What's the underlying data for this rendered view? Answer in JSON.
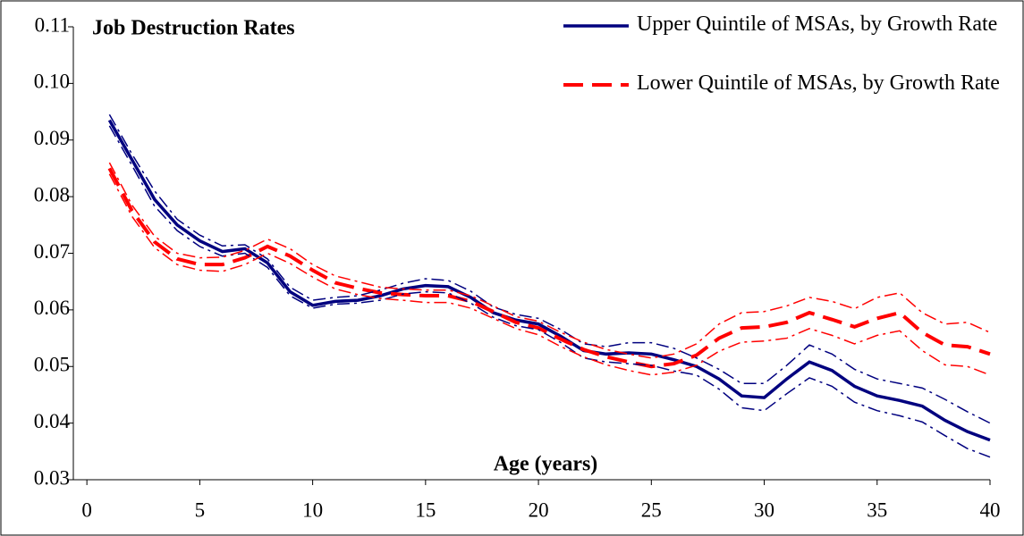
{
  "chart_data": {
    "type": "line",
    "title": "Job Destruction Rates",
    "x_label": "Age (years)",
    "x": [
      1,
      2,
      3,
      4,
      5,
      6,
      7,
      8,
      9,
      10,
      11,
      12,
      13,
      14,
      15,
      16,
      17,
      18,
      19,
      20,
      21,
      22,
      23,
      24,
      25,
      26,
      27,
      28,
      29,
      30,
      31,
      32,
      33,
      34,
      35,
      36,
      37,
      38,
      39,
      40
    ],
    "xlim": [
      -0.6,
      40
    ],
    "xticks": [
      0,
      5,
      10,
      15,
      20,
      25,
      30,
      35,
      40
    ],
    "ylim": [
      0.03,
      0.11
    ],
    "yticks": [
      0.03,
      0.04,
      0.05,
      0.06,
      0.07,
      0.08,
      0.09,
      {
        "value": 0.1,
        "label": "0.10"
      },
      0.11
    ],
    "legend": "top-right",
    "series": [
      {
        "name": "Upper Quintile of MSAs, by Growth Rate",
        "color": "#00007f",
        "style": "solid",
        "width": 3.5,
        "values": [
          0.0935,
          0.0865,
          0.0795,
          0.075,
          0.0722,
          0.0703,
          0.0708,
          0.0683,
          0.0632,
          0.0608,
          0.0615,
          0.0617,
          0.0625,
          0.0637,
          0.0643,
          0.0641,
          0.0622,
          0.0595,
          0.0582,
          0.0575,
          0.0553,
          0.0528,
          0.0522,
          0.0524,
          0.0522,
          0.0512,
          0.05,
          0.0478,
          0.0448,
          0.0445,
          0.0478,
          0.0508,
          0.0493,
          0.0465,
          0.0448,
          0.044,
          0.043,
          0.0405,
          0.0385,
          0.037
        ]
      },
      {
        "name": "Lower Quintile of MSAs, by Growth Rate",
        "color": "#ff0000",
        "style": "dashed",
        "width": 4,
        "values": [
          0.085,
          0.0775,
          0.072,
          0.069,
          0.068,
          0.068,
          0.0692,
          0.0712,
          0.0695,
          0.067,
          0.0648,
          0.0638,
          0.063,
          0.0627,
          0.0625,
          0.0625,
          0.0615,
          0.0597,
          0.0578,
          0.0568,
          0.0548,
          0.053,
          0.0517,
          0.0508,
          0.05,
          0.0505,
          0.052,
          0.055,
          0.0568,
          0.057,
          0.0578,
          0.0595,
          0.0583,
          0.057,
          0.0585,
          0.0595,
          0.056,
          0.0538,
          0.0535,
          0.0522
        ]
      },
      {
        "color": "#00007f",
        "style": "dashdot",
        "width": 1.5,
        "values": [
          0.0945,
          0.0875,
          0.081,
          0.076,
          0.0732,
          0.0713,
          0.0715,
          0.069,
          0.064,
          0.0617,
          0.0622,
          0.0625,
          0.0635,
          0.0647,
          0.0655,
          0.0652,
          0.0633,
          0.0605,
          0.0592,
          0.0585,
          0.0565,
          0.054,
          0.0535,
          0.0542,
          0.0542,
          0.0532,
          0.0515,
          0.0495,
          0.047,
          0.047,
          0.0502,
          0.0538,
          0.0522,
          0.0495,
          0.0478,
          0.047,
          0.0462,
          0.0442,
          0.042,
          0.04
        ]
      },
      {
        "color": "#00007f",
        "style": "dashdot",
        "width": 1.5,
        "values": [
          0.0925,
          0.0855,
          0.0783,
          0.074,
          0.0712,
          0.0695,
          0.07,
          0.0675,
          0.0625,
          0.0603,
          0.061,
          0.0612,
          0.0617,
          0.0628,
          0.0632,
          0.063,
          0.0612,
          0.0587,
          0.0572,
          0.0565,
          0.0542,
          0.0515,
          0.0508,
          0.0505,
          0.0502,
          0.0492,
          0.0485,
          0.046,
          0.0427,
          0.0422,
          0.0452,
          0.048,
          0.0465,
          0.0437,
          0.0422,
          0.0413,
          0.0402,
          0.0378,
          0.0355,
          0.034
        ]
      },
      {
        "color": "#ff0000",
        "style": "dashdot",
        "width": 1.5,
        "values": [
          0.086,
          0.0785,
          0.073,
          0.07,
          0.0692,
          0.0693,
          0.0705,
          0.0725,
          0.0708,
          0.068,
          0.066,
          0.065,
          0.064,
          0.0637,
          0.0635,
          0.0635,
          0.0625,
          0.0607,
          0.0588,
          0.058,
          0.056,
          0.0543,
          0.053,
          0.0522,
          0.0515,
          0.0522,
          0.054,
          0.0575,
          0.0595,
          0.0597,
          0.0607,
          0.0622,
          0.0615,
          0.0602,
          0.0622,
          0.063,
          0.0595,
          0.0575,
          0.0578,
          0.056
        ]
      },
      {
        "color": "#ff0000",
        "style": "dashdot",
        "width": 1.5,
        "values": [
          0.084,
          0.0765,
          0.071,
          0.068,
          0.067,
          0.0668,
          0.068,
          0.07,
          0.0682,
          0.0658,
          0.0637,
          0.0627,
          0.062,
          0.0617,
          0.0613,
          0.0613,
          0.0603,
          0.0585,
          0.0567,
          0.0556,
          0.0535,
          0.0517,
          0.0503,
          0.0493,
          0.0485,
          0.049,
          0.0502,
          0.0527,
          0.0543,
          0.0545,
          0.055,
          0.0567,
          0.0555,
          0.054,
          0.0555,
          0.0563,
          0.0528,
          0.0503,
          0.05,
          0.0485
        ]
      }
    ]
  }
}
